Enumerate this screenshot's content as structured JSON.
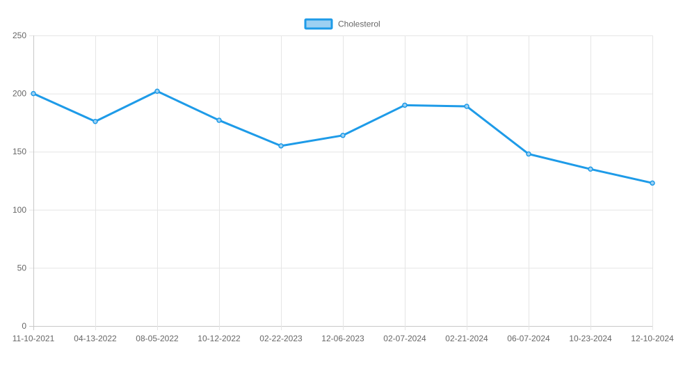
{
  "chart_data": {
    "type": "line",
    "title": "",
    "xlabel": "",
    "ylabel": "",
    "categories": [
      "11-10-2021",
      "04-13-2022",
      "08-05-2022",
      "10-12-2022",
      "02-22-2023",
      "12-06-2023",
      "02-07-2024",
      "02-21-2024",
      "06-07-2024",
      "10-23-2024",
      "12-10-2024"
    ],
    "series": [
      {
        "name": "Cholesterol",
        "values": [
          200,
          176,
          202,
          177,
          155,
          164,
          190,
          189,
          148,
          135,
          123
        ],
        "color": "#1e9be8",
        "fill": "#9dd0f2"
      }
    ],
    "ylim": [
      0,
      250
    ],
    "yticks": [
      "0",
      "50",
      "100",
      "150",
      "200",
      "250"
    ],
    "grid": true,
    "legend_position": "top-center"
  }
}
